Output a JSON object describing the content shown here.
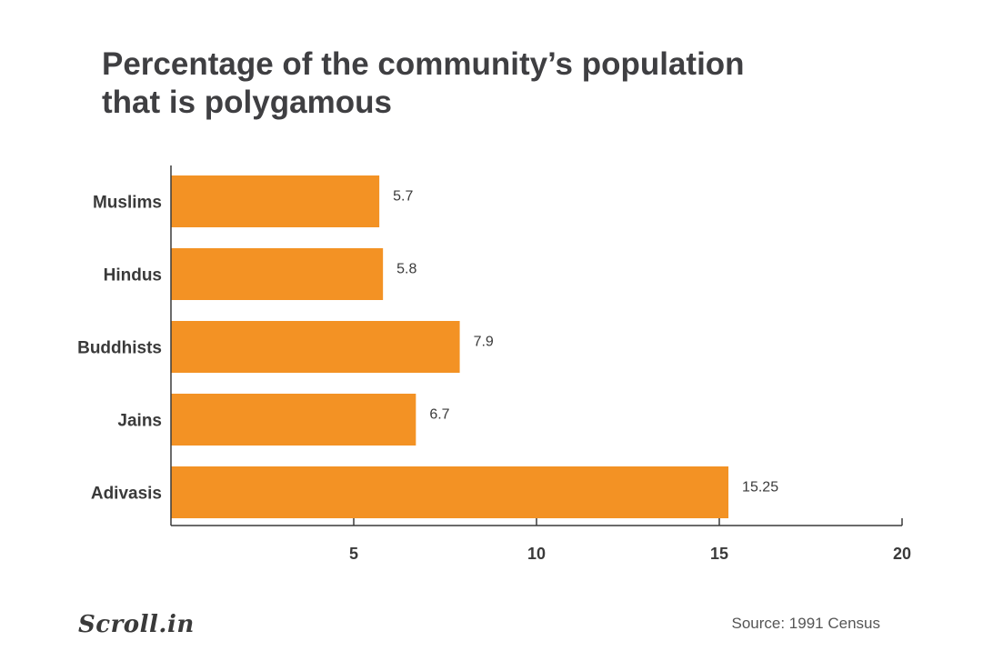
{
  "title_lines": [
    "Percentage of the community’s population",
    "that is polygamous"
  ],
  "chart_data": {
    "type": "bar",
    "orientation": "horizontal",
    "title": "Percentage of the community’s population that is polygamous",
    "categories": [
      "Muslims",
      "Hindus",
      "Buddhists",
      "Jains",
      "Adivasis"
    ],
    "values": [
      5.7,
      5.8,
      7.9,
      6.7,
      15.25
    ],
    "value_labels": [
      "5.7",
      "5.8",
      "7.9",
      "6.7",
      "15.25"
    ],
    "xlim": [
      0,
      20
    ],
    "xticks": [
      5,
      10,
      15,
      20
    ],
    "xlabel": "",
    "ylabel": "",
    "grid": false,
    "bar_color": "#f39224",
    "axis_color": "#3a3a3a"
  },
  "footer": {
    "logo_text": "Scroll.in",
    "source": "Source: 1991 Census"
  }
}
